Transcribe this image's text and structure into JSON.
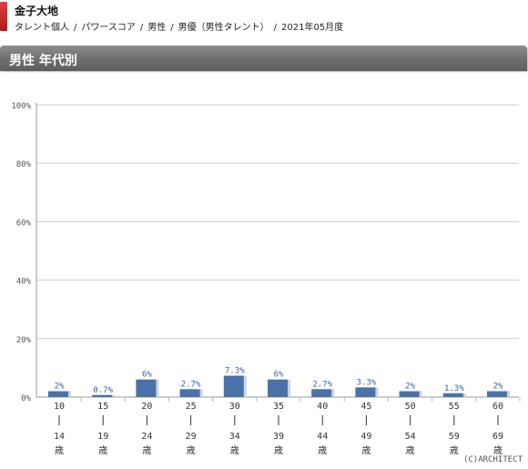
{
  "header": {
    "title": "金子大地",
    "breadcrumb": [
      "タレント個人",
      "パワースコア",
      "男性",
      "男優（男性タレント）",
      "2021年05月度"
    ]
  },
  "section": {
    "title": "男性  年代別"
  },
  "chart_data": {
    "type": "bar",
    "categories": [
      {
        "from": "10",
        "to": "14",
        "unit": "歳"
      },
      {
        "from": "15",
        "to": "19",
        "unit": "歳"
      },
      {
        "from": "20",
        "to": "24",
        "unit": "歳"
      },
      {
        "from": "25",
        "to": "29",
        "unit": "歳"
      },
      {
        "from": "30",
        "to": "34",
        "unit": "歳"
      },
      {
        "from": "35",
        "to": "39",
        "unit": "歳"
      },
      {
        "from": "40",
        "to": "44",
        "unit": "歳"
      },
      {
        "from": "45",
        "to": "49",
        "unit": "歳"
      },
      {
        "from": "50",
        "to": "54",
        "unit": "歳"
      },
      {
        "from": "55",
        "to": "59",
        "unit": "歳"
      },
      {
        "from": "60",
        "to": "69",
        "unit": "歳"
      }
    ],
    "values": [
      2,
      0.7,
      6,
      2.7,
      7.3,
      6,
      2.7,
      3.3,
      2,
      1.3,
      2
    ],
    "data_labels": [
      "2%",
      "0.7%",
      "6%",
      "2.7%",
      "7.3%",
      "6%",
      "2.7%",
      "3.3%",
      "2%",
      "1.3%",
      "2%"
    ],
    "yticks": [
      "0%",
      "20%",
      "40%",
      "60%",
      "80%",
      "100%"
    ],
    "ylim": [
      0,
      100
    ],
    "bar_color": "#4a72a8",
    "grid": true
  },
  "credit": "(C)ARCHITECT"
}
